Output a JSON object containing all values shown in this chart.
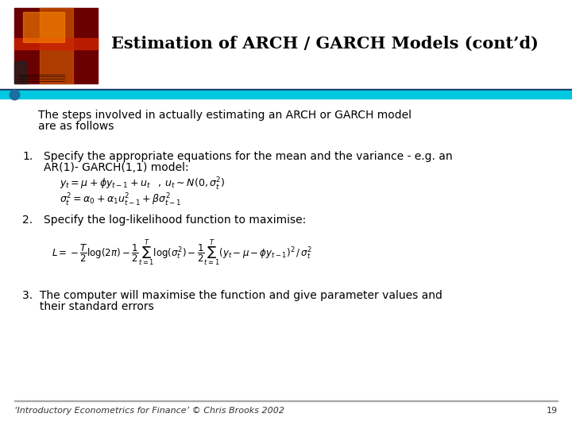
{
  "title": "Estimation of ARCH / GARCH Models (cont’d)",
  "bg_color": "#ffffff",
  "title_color": "#000000",
  "cyan_line_color": "#00c8e0",
  "bullet_color": "#1a6fa0",
  "footer_text": "‘Introductory Econometrics for Finance’ © Chris Brooks 2002",
  "page_number": "19",
  "bullet_text_line1": "The steps involved in actually estimating an ARCH or GARCH model",
  "bullet_text_line2": "are as follows",
  "item1_label": "1.",
  "item1_text_line1": "Specify the appropriate equations for the mean and the variance - e.g. an",
  "item1_text_line2": "AR(1)- GARCH(1,1) model:",
  "item1_eq1": "$y_t = \\mu + \\phi y_{t-1} + u_t \\;\\;\\; , \\; u_t \\sim N(0, \\sigma_t^2)$",
  "item1_eq2": "$\\sigma_t^2 = \\alpha_0 + \\alpha_1 u_{t-1}^2 + \\beta \\sigma_{t-1}^2$",
  "item2_label": "2.",
  "item2_text": "Specify the log-likelihood function to maximise:",
  "item2_eq": "$L = -\\dfrac{T}{2}\\log(2\\pi) - \\dfrac{1}{2}\\sum_{t=1}^{T}\\log(\\sigma_t^2) - \\dfrac{1}{2}\\sum_{t=1}^{T}(y_t - \\mu - \\phi y_{t-1})^2 \\,/\\, \\sigma_t^2$",
  "item3_text_line1": "3.  The computer will maximise the function and give parameter values and",
  "item3_text_line2": "     their standard errors",
  "font_size_title": 15,
  "font_size_body": 10,
  "font_size_eq": 9,
  "font_size_footer": 8
}
